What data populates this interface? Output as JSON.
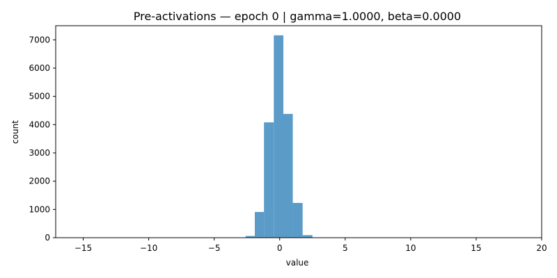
{
  "chart_data": {
    "type": "bar",
    "title": "Pre-activations — epoch 0 | gamma=1.0000, beta=0.0000",
    "xlabel": "value",
    "ylabel": "count",
    "xlim": [
      -17.1,
      20.0
    ],
    "ylim": [
      0,
      7500
    ],
    "x_ticks": [
      -15,
      -10,
      -5,
      0,
      5,
      10,
      15,
      20
    ],
    "y_ticks": [
      0,
      1000,
      2000,
      3000,
      4000,
      5000,
      6000,
      7000
    ],
    "grid": false,
    "bar_color": "#5b9bc8",
    "bins": [
      {
        "x0": -2.6,
        "x1": -1.9,
        "count": 60
      },
      {
        "x0": -1.9,
        "x1": -1.2,
        "count": 910
      },
      {
        "x0": -1.2,
        "x1": -0.45,
        "count": 4080
      },
      {
        "x0": -0.45,
        "x1": 0.28,
        "count": 7160
      },
      {
        "x0": 0.28,
        "x1": 1.0,
        "count": 4380
      },
      {
        "x0": 1.0,
        "x1": 1.75,
        "count": 1230
      },
      {
        "x0": 1.75,
        "x1": 2.5,
        "count": 90
      }
    ]
  }
}
